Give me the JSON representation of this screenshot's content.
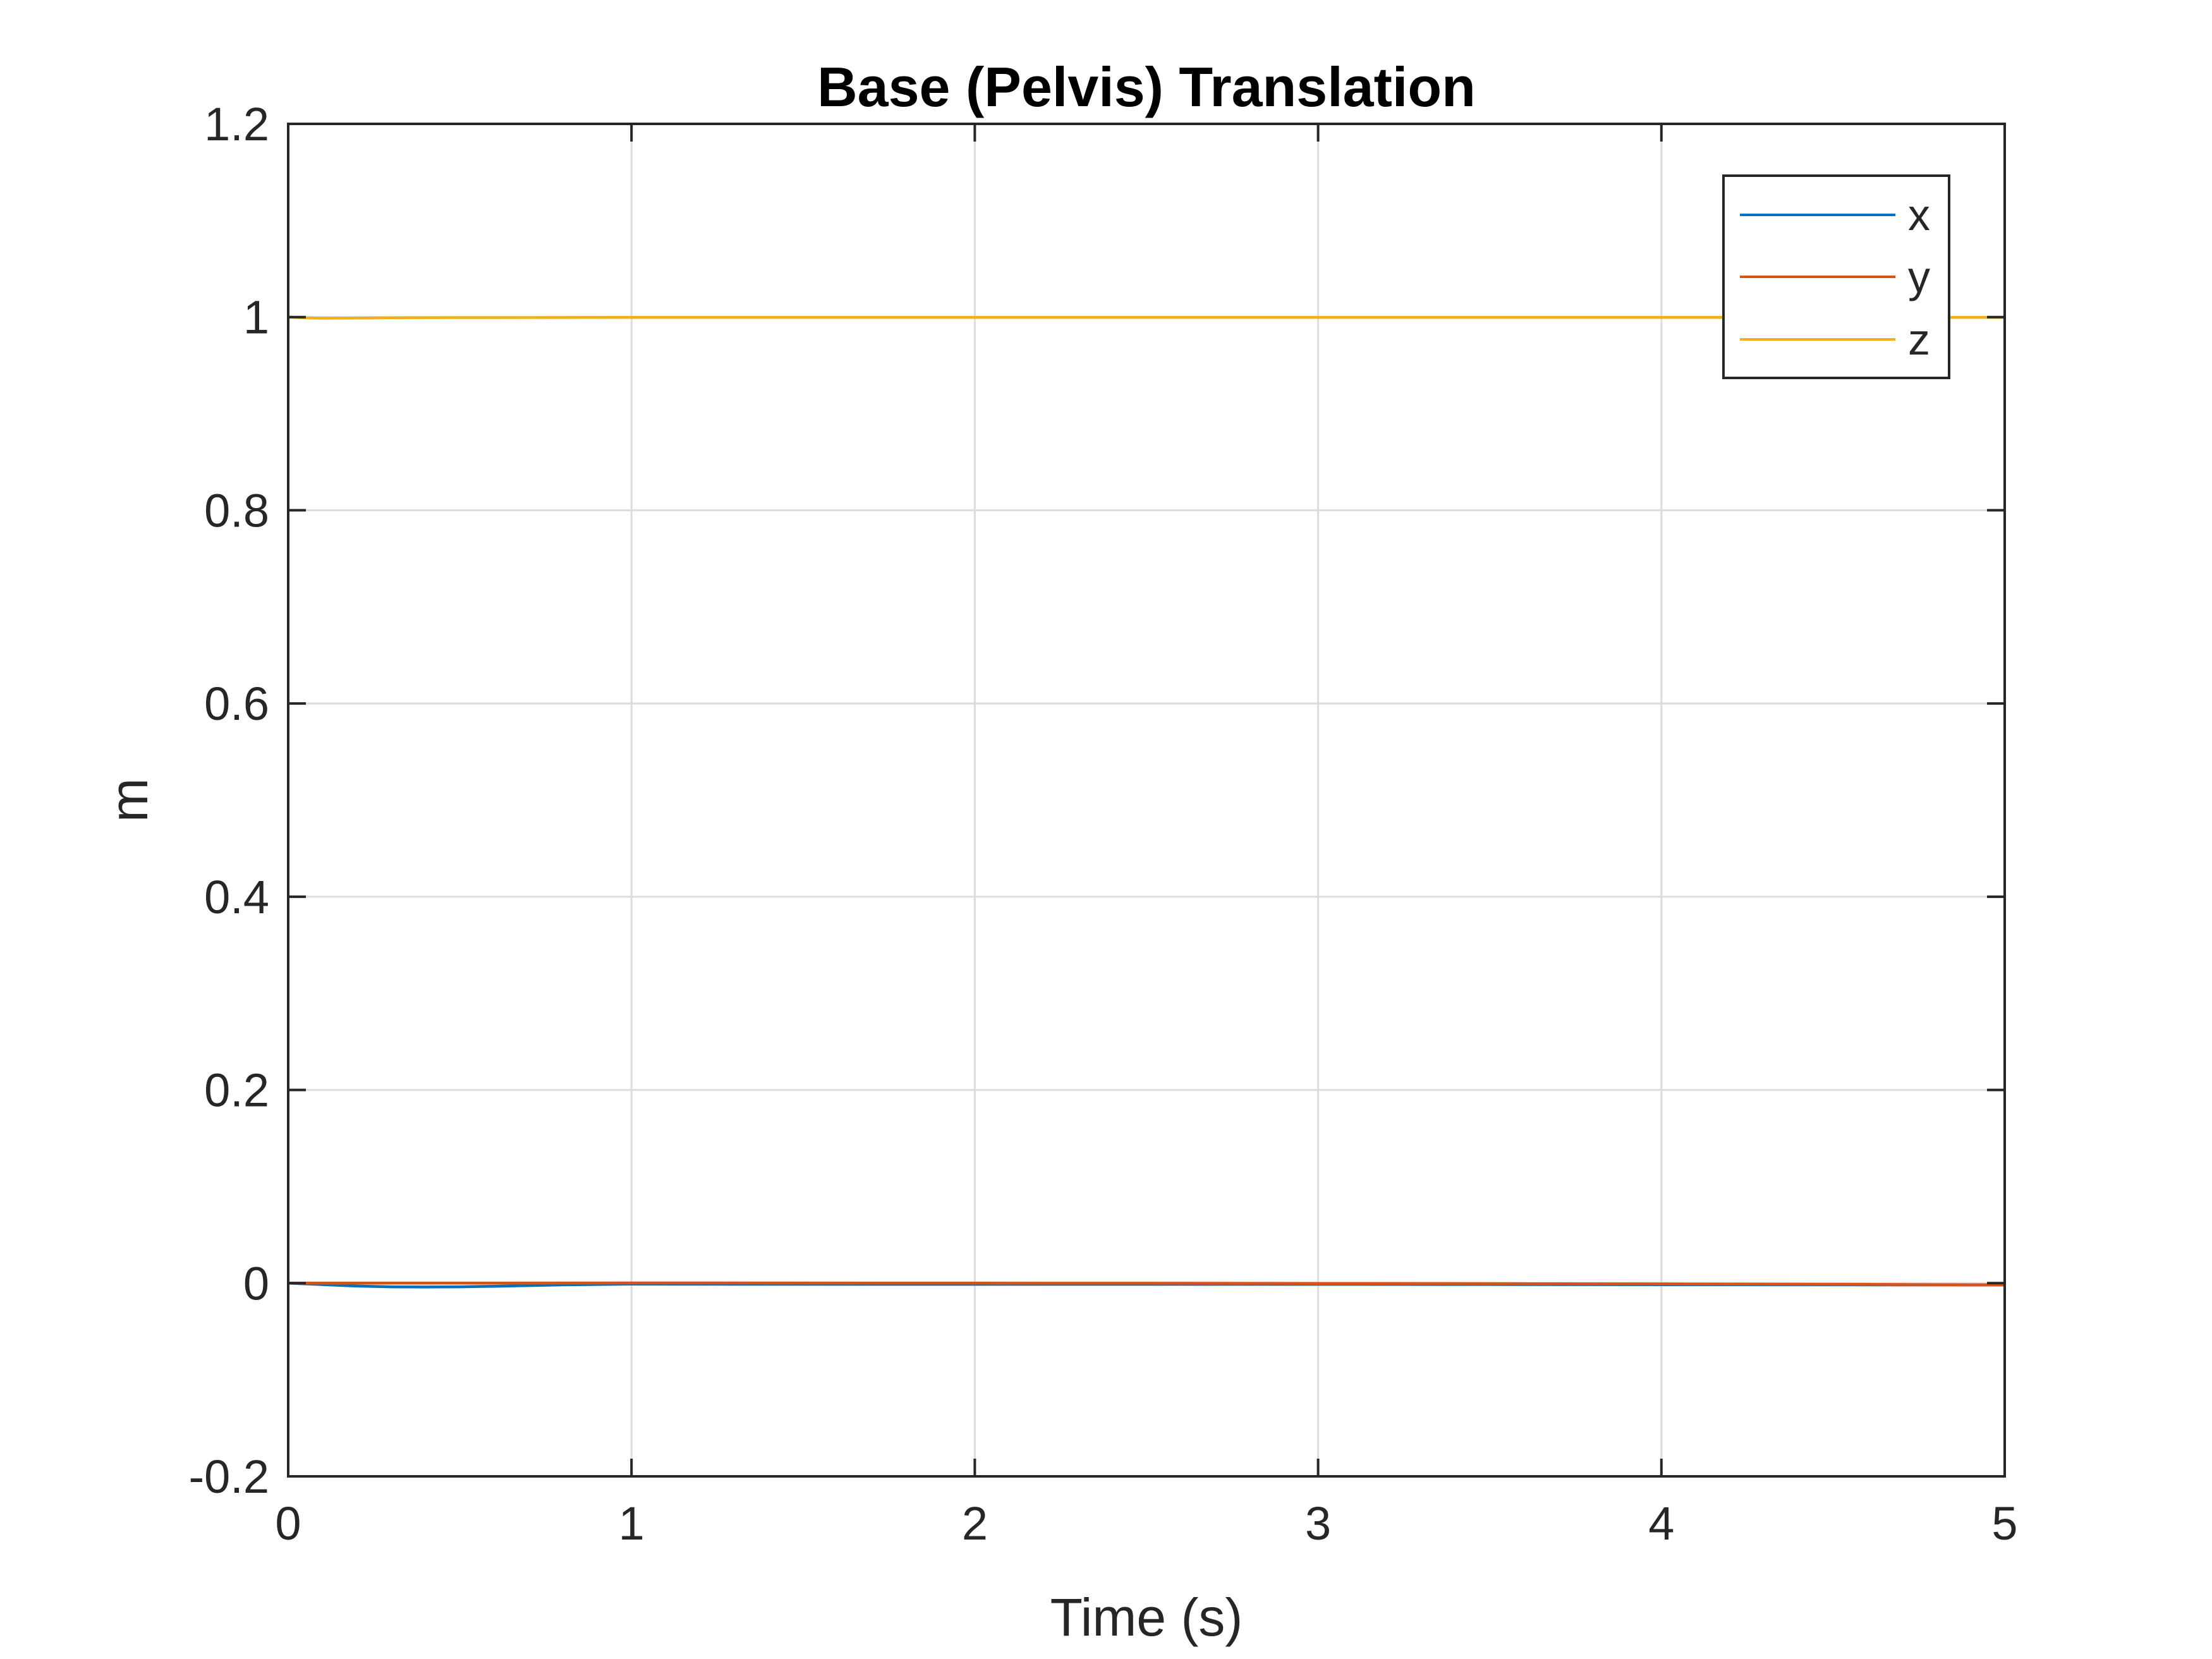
{
  "chart_data": {
    "type": "line",
    "title": "Base (Pelvis) Translation",
    "xlabel": "Time (s)",
    "ylabel": "m",
    "xlim": [
      0,
      5
    ],
    "ylim": [
      -0.2,
      1.2
    ],
    "xticks": [
      0,
      1,
      2,
      3,
      4,
      5
    ],
    "yticks": [
      -0.2,
      0,
      0.2,
      0.4,
      0.6,
      0.8,
      1,
      1.2
    ],
    "xtick_labels": [
      "0",
      "1",
      "2",
      "3",
      "4",
      "5"
    ],
    "ytick_labels": [
      "-0.2",
      "0",
      "0.2",
      "0.4",
      "0.6",
      "0.8",
      "1",
      "1.2"
    ],
    "grid": true,
    "legend_position": "top-right",
    "series": [
      {
        "name": "x",
        "color": "#0072BD",
        "x": [
          0,
          0.1,
          0.2,
          0.3,
          0.4,
          0.5,
          0.6,
          0.7,
          0.8,
          1.0,
          1.5,
          2.0,
          2.5,
          3.0,
          3.5,
          4.0,
          4.5,
          5.0
        ],
        "y": [
          0,
          -0.0015,
          -0.003,
          -0.0038,
          -0.004,
          -0.0038,
          -0.0032,
          -0.0025,
          -0.0018,
          -0.001,
          -0.0012,
          -0.0012,
          -0.0012,
          -0.0012,
          -0.0014,
          -0.0016,
          -0.0018,
          -0.002
        ]
      },
      {
        "name": "y",
        "color": "#D95319",
        "x": [
          0,
          0.5,
          1.0,
          1.5,
          2.0,
          2.5,
          3.0,
          3.5,
          4.0,
          4.5,
          5.0
        ],
        "y": [
          0,
          0,
          0.0002,
          0.0001,
          0,
          -0.0001,
          -0.0003,
          -0.0005,
          -0.0008,
          -0.0012,
          -0.0018
        ]
      },
      {
        "name": "z",
        "color": "#EDB120",
        "x": [
          0,
          0.05,
          0.1,
          0.2,
          0.3,
          0.5,
          1.0,
          2.0,
          3.0,
          4.0,
          5.0
        ],
        "y": [
          1.0,
          0.9992,
          0.9988,
          0.999,
          0.9993,
          0.9995,
          0.9996,
          0.9996,
          0.9996,
          0.9996,
          0.9996
        ]
      }
    ]
  }
}
